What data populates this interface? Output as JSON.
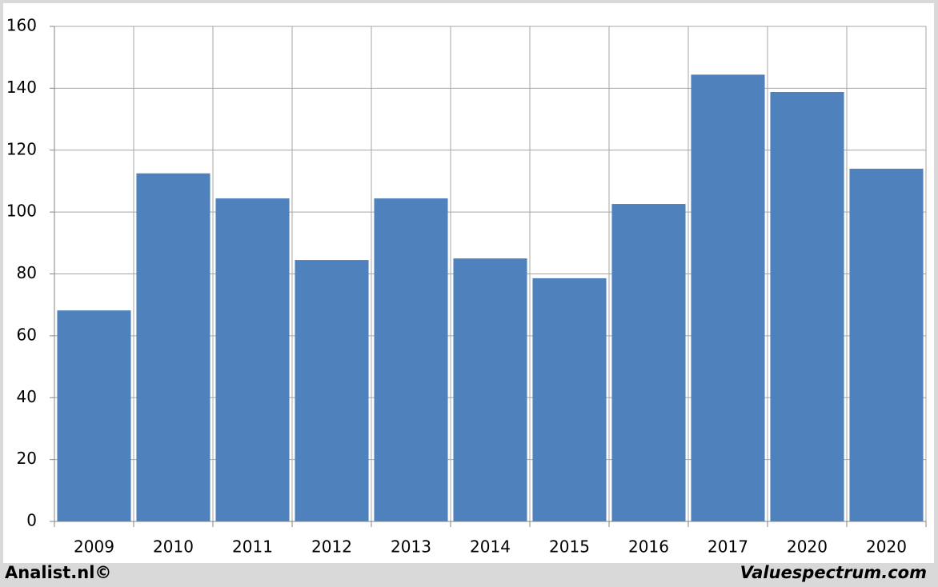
{
  "chart_data": {
    "type": "bar",
    "categories": [
      "2009",
      "2010",
      "2011",
      "2012",
      "2013",
      "2014",
      "2015",
      "2016",
      "2017",
      "2020",
      "2020"
    ],
    "values": [
      68.2,
      112.5,
      104.4,
      84.5,
      104.4,
      85,
      78.6,
      102.6,
      144.4,
      138.8,
      114
    ],
    "color": "#4f81bd",
    "ylim": [
      0,
      160
    ],
    "yticks": [
      0,
      20,
      40,
      60,
      80,
      100,
      120,
      140,
      160
    ],
    "grid": true,
    "footer_left": "Analist.nl©",
    "footer_right": "Valuespectrum.com"
  }
}
